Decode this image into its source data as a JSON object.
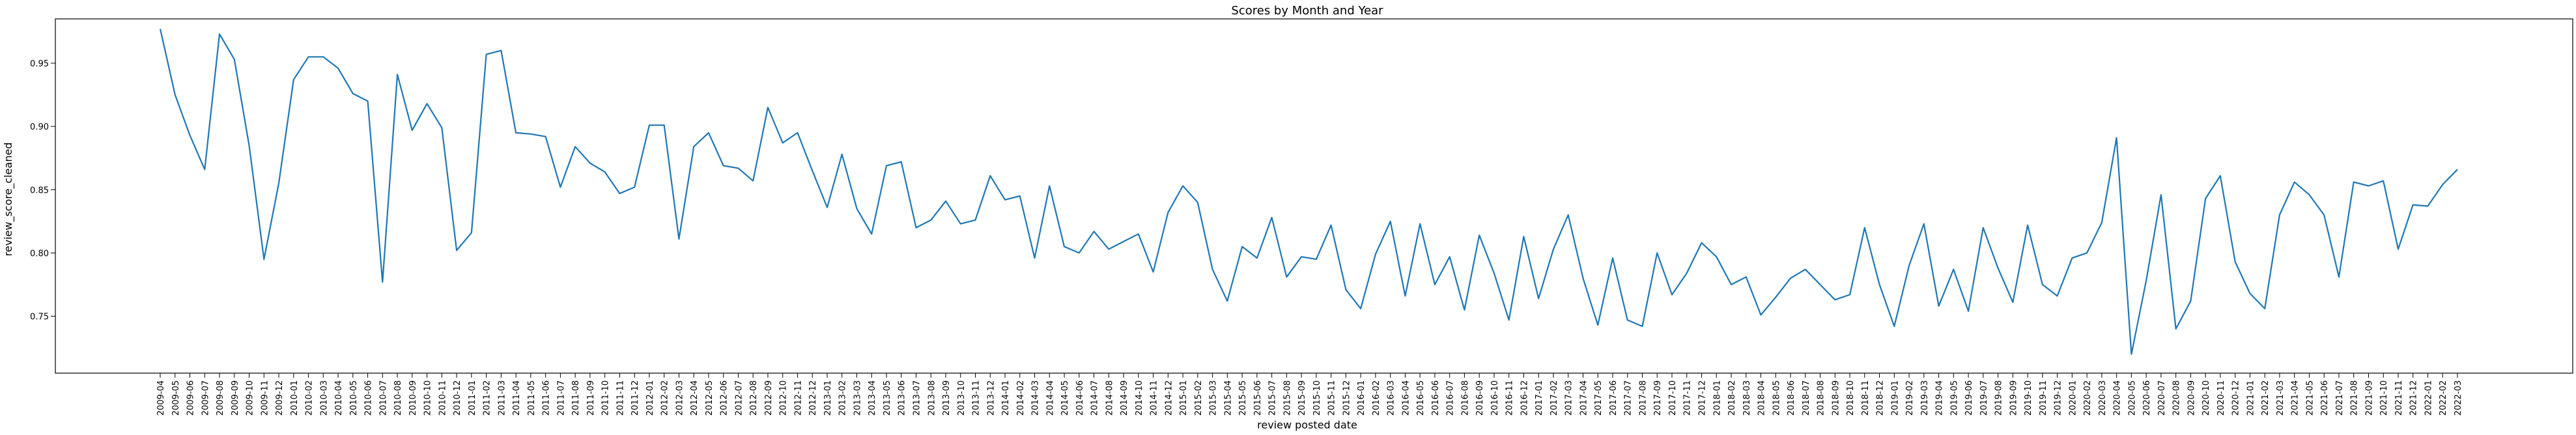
{
  "chart_data": {
    "type": "line",
    "title": "Scores by Month and Year",
    "xlabel": "review posted date",
    "ylabel": "review_score_cleaned",
    "ylim": [
      0.705,
      0.985
    ],
    "yticks": [
      0.75,
      0.8,
      0.85,
      0.9,
      0.95
    ],
    "ytick_labels": [
      "0.75",
      "0.80",
      "0.85",
      "0.90",
      "0.95"
    ],
    "line_color": "#1f77b4",
    "grid": false,
    "series": [
      {
        "name": "review_score_cleaned",
        "points": [
          [
            "2009-04",
            0.977
          ],
          [
            "2009-05",
            0.925
          ],
          [
            "2009-06",
            0.893
          ],
          [
            "2009-07",
            0.866
          ],
          [
            "2009-08",
            0.973
          ],
          [
            "2009-09",
            0.953
          ],
          [
            "2009-10",
            0.885
          ],
          [
            "2009-11",
            0.795
          ],
          [
            "2009-12",
            0.855
          ],
          [
            "2010-01",
            0.937
          ],
          [
            "2010-02",
            0.955
          ],
          [
            "2010-03",
            0.955
          ],
          [
            "2010-04",
            0.946
          ],
          [
            "2010-05",
            0.926
          ],
          [
            "2010-06",
            0.92
          ],
          [
            "2010-07",
            0.777
          ],
          [
            "2010-08",
            0.941
          ],
          [
            "2010-09",
            0.897
          ],
          [
            "2010-10",
            0.918
          ],
          [
            "2010-11",
            0.899
          ],
          [
            "2010-12",
            0.802
          ],
          [
            "2011-01",
            0.816
          ],
          [
            "2011-02",
            0.957
          ],
          [
            "2011-03",
            0.96
          ],
          [
            "2011-04",
            0.895
          ],
          [
            "2011-05",
            0.894
          ],
          [
            "2011-06",
            0.892
          ],
          [
            "2011-07",
            0.852
          ],
          [
            "2011-08",
            0.884
          ],
          [
            "2011-09",
            0.871
          ],
          [
            "2011-10",
            0.864
          ],
          [
            "2011-11",
            0.847
          ],
          [
            "2011-12",
            0.852
          ],
          [
            "2012-01",
            0.901
          ],
          [
            "2012-02",
            0.901
          ],
          [
            "2012-03",
            0.811
          ],
          [
            "2012-04",
            0.884
          ],
          [
            "2012-05",
            0.895
          ],
          [
            "2012-06",
            0.869
          ],
          [
            "2012-07",
            0.867
          ],
          [
            "2012-08",
            0.857
          ],
          [
            "2012-09",
            0.915
          ],
          [
            "2012-10",
            0.887
          ],
          [
            "2012-11",
            0.895
          ],
          [
            "2012-12",
            0.865
          ],
          [
            "2013-01",
            0.836
          ],
          [
            "2013-02",
            0.878
          ],
          [
            "2013-03",
            0.835
          ],
          [
            "2013-04",
            0.815
          ],
          [
            "2013-05",
            0.869
          ],
          [
            "2013-06",
            0.872
          ],
          [
            "2013-07",
            0.82
          ],
          [
            "2013-08",
            0.826
          ],
          [
            "2013-09",
            0.841
          ],
          [
            "2013-10",
            0.823
          ],
          [
            "2013-11",
            0.826
          ],
          [
            "2013-12",
            0.861
          ],
          [
            "2014-01",
            0.842
          ],
          [
            "2014-02",
            0.845
          ],
          [
            "2014-03",
            0.796
          ],
          [
            "2014-04",
            0.853
          ],
          [
            "2014-05",
            0.805
          ],
          [
            "2014-06",
            0.8
          ],
          [
            "2014-07",
            0.817
          ],
          [
            "2014-08",
            0.803
          ],
          [
            "2014-09",
            0.809
          ],
          [
            "2014-10",
            0.815
          ],
          [
            "2014-11",
            0.785
          ],
          [
            "2014-12",
            0.832
          ],
          [
            "2015-01",
            0.853
          ],
          [
            "2015-02",
            0.84
          ],
          [
            "2015-03",
            0.787
          ],
          [
            "2015-04",
            0.762
          ],
          [
            "2015-05",
            0.805
          ],
          [
            "2015-06",
            0.796
          ],
          [
            "2015-07",
            0.828
          ],
          [
            "2015-08",
            0.781
          ],
          [
            "2015-09",
            0.797
          ],
          [
            "2015-10",
            0.795
          ],
          [
            "2015-11",
            0.822
          ],
          [
            "2015-12",
            0.771
          ],
          [
            "2016-01",
            0.756
          ],
          [
            "2016-02",
            0.799
          ],
          [
            "2016-03",
            0.825
          ],
          [
            "2016-04",
            0.766
          ],
          [
            "2016-05",
            0.823
          ],
          [
            "2016-06",
            0.775
          ],
          [
            "2016-07",
            0.797
          ],
          [
            "2016-08",
            0.755
          ],
          [
            "2016-09",
            0.814
          ],
          [
            "2016-10",
            0.784
          ],
          [
            "2016-11",
            0.747
          ],
          [
            "2016-12",
            0.813
          ],
          [
            "2017-01",
            0.764
          ],
          [
            "2017-02",
            0.803
          ],
          [
            "2017-03",
            0.83
          ],
          [
            "2017-04",
            0.78
          ],
          [
            "2017-05",
            0.743
          ],
          [
            "2017-06",
            0.796
          ],
          [
            "2017-07",
            0.747
          ],
          [
            "2017-08",
            0.742
          ],
          [
            "2017-09",
            0.8
          ],
          [
            "2017-10",
            0.767
          ],
          [
            "2017-11",
            0.784
          ],
          [
            "2017-12",
            0.808
          ],
          [
            "2018-01",
            0.797
          ],
          [
            "2018-02",
            0.775
          ],
          [
            "2018-03",
            0.781
          ],
          [
            "2018-04",
            0.751
          ],
          [
            "2018-05",
            0.765
          ],
          [
            "2018-06",
            0.78
          ],
          [
            "2018-07",
            0.787
          ],
          [
            "2018-08",
            0.775
          ],
          [
            "2018-09",
            0.763
          ],
          [
            "2018-10",
            0.767
          ],
          [
            "2018-11",
            0.82
          ],
          [
            "2018-12",
            0.775
          ],
          [
            "2019-01",
            0.742
          ],
          [
            "2019-02",
            0.79
          ],
          [
            "2019-03",
            0.823
          ],
          [
            "2019-04",
            0.758
          ],
          [
            "2019-05",
            0.787
          ],
          [
            "2019-06",
            0.754
          ],
          [
            "2019-07",
            0.82
          ],
          [
            "2019-08",
            0.788
          ],
          [
            "2019-09",
            0.761
          ],
          [
            "2019-10",
            0.822
          ],
          [
            "2019-11",
            0.775
          ],
          [
            "2019-12",
            0.766
          ],
          [
            "2020-01",
            0.796
          ],
          [
            "2020-02",
            0.8
          ],
          [
            "2020-03",
            0.824
          ],
          [
            "2020-04",
            0.891
          ],
          [
            "2020-05",
            0.72
          ],
          [
            "2020-06",
            0.778
          ],
          [
            "2020-07",
            0.846
          ],
          [
            "2020-08",
            0.74
          ],
          [
            "2020-09",
            0.762
          ],
          [
            "2020-10",
            0.843
          ],
          [
            "2020-11",
            0.861
          ],
          [
            "2020-12",
            0.793
          ],
          [
            "2021-01",
            0.768
          ],
          [
            "2021-02",
            0.756
          ],
          [
            "2021-03",
            0.83
          ],
          [
            "2021-04",
            0.856
          ],
          [
            "2021-05",
            0.846
          ],
          [
            "2021-06",
            0.83
          ],
          [
            "2021-07",
            0.781
          ],
          [
            "2021-08",
            0.856
          ],
          [
            "2021-09",
            0.853
          ],
          [
            "2021-10",
            0.857
          ],
          [
            "2021-11",
            0.803
          ],
          [
            "2021-12",
            0.838
          ],
          [
            "2022-01",
            0.837
          ],
          [
            "2022-02",
            0.854
          ],
          [
            "2022-03",
            0.866
          ]
        ]
      }
    ]
  }
}
